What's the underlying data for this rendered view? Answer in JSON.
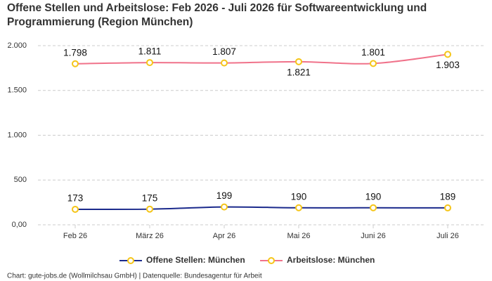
{
  "chart_data": {
    "type": "line",
    "title": "Offene Stellen und Arbeitslose: Feb 2026 - Juli 2026 für Softwareentwicklung und Programmierung (Region München)",
    "source": "Chart: gute-jobs.de (Wollmilchsau GmbH) | Datenquelle: Bundesagentur für Arbeit",
    "categories": [
      "Feb 26",
      "März 26",
      "Apr 26",
      "Mai 26",
      "Juni 26",
      "Juli 26"
    ],
    "series": [
      {
        "name": "Offene Stellen: München",
        "color": "#1b2a8c",
        "values": [
          173,
          175,
          199,
          190,
          190,
          189
        ]
      },
      {
        "name": "Arbeitslose: München",
        "color": "#f0728a",
        "values": [
          1798,
          1811,
          1807,
          1821,
          1801,
          1903
        ],
        "value_labels": [
          "1.798",
          "1.811",
          "1.807",
          "1.821",
          "1.801",
          "1.903"
        ]
      }
    ],
    "marker_color": "#f5c518",
    "ylim": [
      0,
      2000
    ],
    "yticks": [
      {
        "value": 0,
        "label": "0,00"
      },
      500,
      {
        "value": 1000,
        "label": "1.000"
      },
      {
        "value": 1500,
        "label": "1.500"
      },
      {
        "value": 2000,
        "label": "2.000"
      }
    ],
    "grid": true
  }
}
